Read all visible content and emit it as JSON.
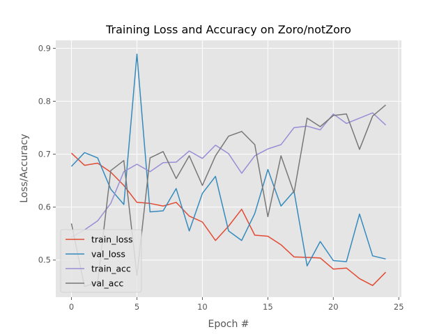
{
  "chart_data": {
    "type": "line",
    "title": "Training Loss and Accuracy on Zoro/notZoro",
    "xlabel": "Epoch #",
    "ylabel": "Loss/Accuracy",
    "xlim": [
      -1.2,
      25.2
    ],
    "ylim": [
      0.43,
      0.915
    ],
    "xticks": [
      0,
      5,
      10,
      15,
      20,
      25
    ],
    "yticks": [
      0.5,
      0.6,
      0.7,
      0.8,
      0.9
    ],
    "grid": true,
    "legend_position": "lower-left",
    "x": [
      0,
      1,
      2,
      3,
      4,
      5,
      6,
      7,
      8,
      9,
      10,
      11,
      12,
      13,
      14,
      15,
      16,
      17,
      18,
      19,
      20,
      21,
      22,
      23,
      24
    ],
    "series": [
      {
        "name": "train_loss",
        "color": "#E24A33",
        "values": [
          0.702,
          0.679,
          0.683,
          0.666,
          0.641,
          0.609,
          0.607,
          0.602,
          0.609,
          0.583,
          0.572,
          0.537,
          0.564,
          0.596,
          0.547,
          0.545,
          0.529,
          0.506,
          0.505,
          0.504,
          0.483,
          0.485,
          0.465,
          0.452,
          0.477
        ]
      },
      {
        "name": "val_loss",
        "color": "#348ABD",
        "values": [
          0.677,
          0.703,
          0.693,
          0.634,
          0.605,
          0.889,
          0.591,
          0.593,
          0.635,
          0.555,
          0.626,
          0.658,
          0.555,
          0.537,
          0.588,
          0.671,
          0.602,
          0.63,
          0.489,
          0.535,
          0.499,
          0.497,
          0.587,
          0.508,
          0.502
        ]
      },
      {
        "name": "train_acc",
        "color": "#988ED5",
        "values": [
          0.543,
          0.557,
          0.574,
          0.607,
          0.667,
          0.681,
          0.667,
          0.684,
          0.685,
          0.706,
          0.692,
          0.717,
          0.701,
          0.664,
          0.697,
          0.71,
          0.718,
          0.75,
          0.753,
          0.746,
          0.776,
          0.758,
          0.768,
          0.778,
          0.755
        ]
      },
      {
        "name": "val_acc",
        "color": "#777777",
        "values": [
          0.569,
          0.45,
          0.458,
          0.669,
          0.688,
          0.471,
          0.693,
          0.705,
          0.654,
          0.697,
          0.641,
          0.697,
          0.734,
          0.743,
          0.718,
          0.582,
          0.697,
          0.627,
          0.768,
          0.752,
          0.773,
          0.776,
          0.709,
          0.772,
          0.793
        ]
      }
    ]
  }
}
